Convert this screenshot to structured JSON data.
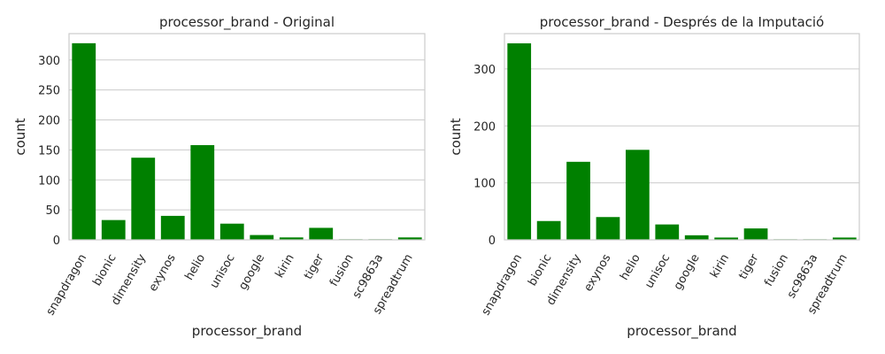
{
  "chart_data": [
    {
      "type": "bar",
      "title": "processor_brand - Original",
      "xlabel": "processor_brand",
      "ylabel": "count",
      "categories": [
        "snapdragon",
        "bionic",
        "dimensity",
        "exynos",
        "helio",
        "unisoc",
        "google",
        "kirin",
        "tiger",
        "fusion",
        "sc9863a",
        "spreadtrum"
      ],
      "values": [
        328,
        33,
        137,
        40,
        158,
        27,
        8,
        4,
        20,
        1,
        1,
        4
      ],
      "ylim": [
        0,
        344
      ],
      "yticks": [
        0,
        50,
        100,
        150,
        200,
        250,
        300
      ],
      "grid": true,
      "color": "#008000"
    },
    {
      "type": "bar",
      "title": "processor_brand - Després de la Imputació",
      "xlabel": "processor_brand",
      "ylabel": "count",
      "categories": [
        "snapdragon",
        "bionic",
        "dimensity",
        "exynos",
        "helio",
        "unisoc",
        "google",
        "kirin",
        "tiger",
        "fusion",
        "sc9863a",
        "spreadtrum"
      ],
      "values": [
        345,
        33,
        137,
        40,
        158,
        27,
        8,
        4,
        20,
        1,
        1,
        4
      ],
      "ylim": [
        0,
        362
      ],
      "yticks": [
        0,
        100,
        200,
        300
      ],
      "grid": true,
      "color": "#008000"
    }
  ]
}
